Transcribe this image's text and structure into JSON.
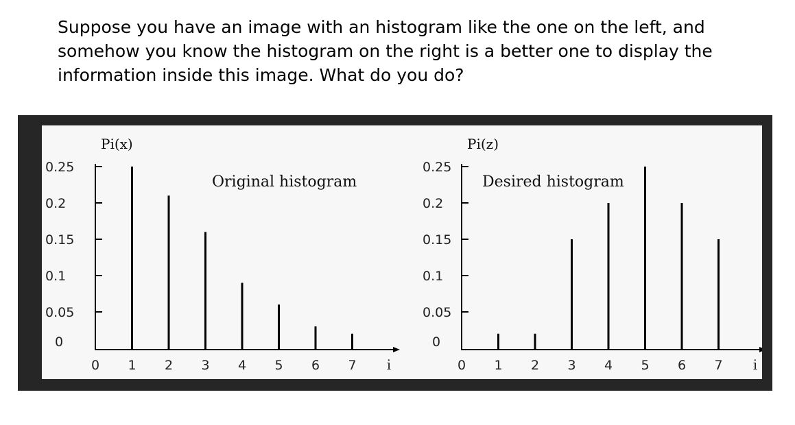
{
  "question": {
    "lines": [
      "Suppose you have an image with an histogram like the one on the left, and",
      "somehow you know the histogram on the right is a better one to display the",
      "information inside this image. What do you do?"
    ]
  },
  "chart_data": [
    {
      "type": "bar",
      "title": "Original histogram",
      "ylabel": "Pi(x)",
      "xlabel": "i",
      "categories": [
        "0",
        "1",
        "2",
        "3",
        "4",
        "5",
        "6",
        "7"
      ],
      "values": [
        0,
        0.25,
        0.21,
        0.16,
        0.09,
        0.06,
        0.03,
        0.02
      ],
      "yticks": [
        "0",
        "0.05",
        "0.1",
        "0.15",
        "0.2",
        "0.25"
      ],
      "ylim": [
        0,
        0.25
      ],
      "grid": false
    },
    {
      "type": "bar",
      "title": "Desired histogram",
      "ylabel": "Pi(z)",
      "xlabel": "i",
      "categories": [
        "0",
        "1",
        "2",
        "3",
        "4",
        "5",
        "6",
        "7"
      ],
      "values": [
        0,
        0.02,
        0.02,
        0.15,
        0.2,
        0.25,
        0.2,
        0.15
      ],
      "yticks": [
        "0",
        "0.05",
        "0.1",
        "0.15",
        "0.2",
        "0.25"
      ],
      "ylim": [
        0,
        0.25
      ],
      "grid": false
    }
  ]
}
